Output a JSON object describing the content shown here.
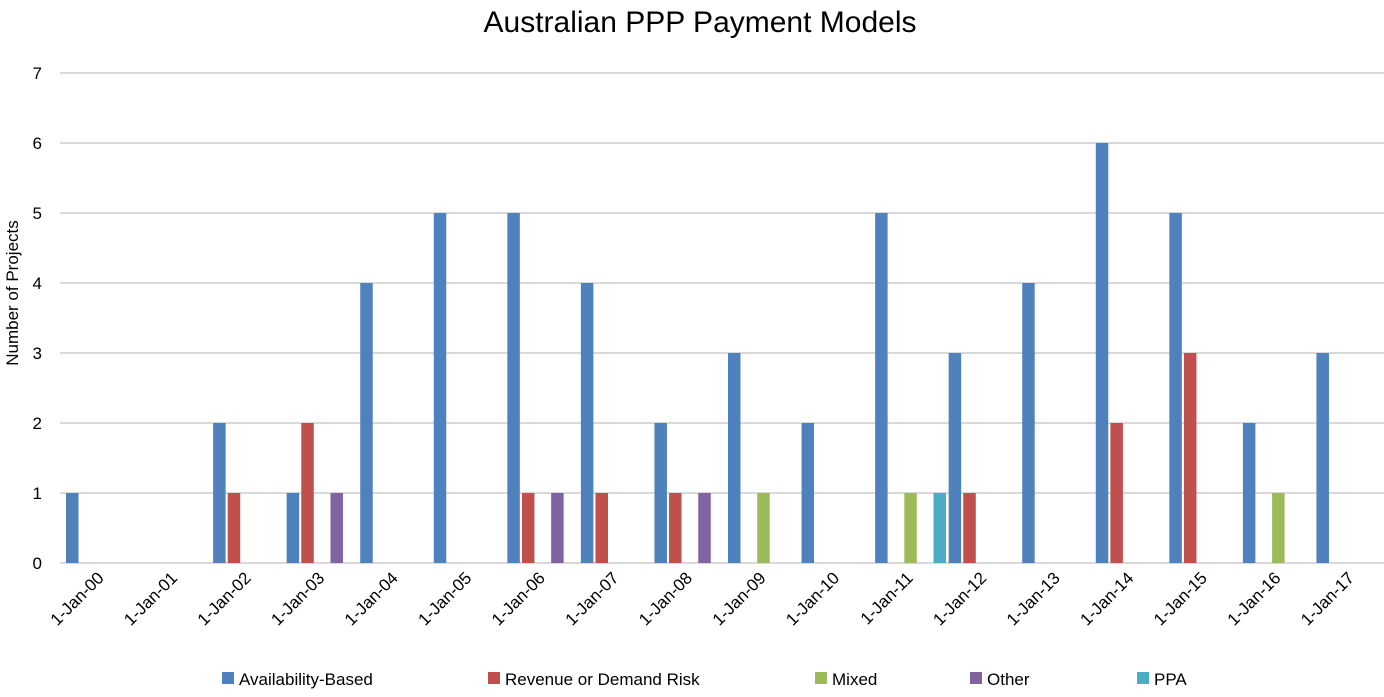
{
  "chart_data": {
    "type": "bar",
    "title": "Australian PPP Payment Models",
    "xlabel": "",
    "ylabel": "Number of Projects",
    "ylim": [
      0,
      7
    ],
    "yticks": [
      0,
      1,
      2,
      3,
      4,
      5,
      6,
      7
    ],
    "grid": true,
    "legend_position": "bottom",
    "categories": [
      "1-Jan-00",
      "1-Jan-01",
      "1-Jan-02",
      "1-Jan-03",
      "1-Jan-04",
      "1-Jan-05",
      "1-Jan-06",
      "1-Jan-07",
      "1-Jan-08",
      "1-Jan-09",
      "1-Jan-10",
      "1-Jan-11",
      "1-Jan-12",
      "1-Jan-13",
      "1-Jan-14",
      "1-Jan-15",
      "1-Jan-16",
      "1-Jan-17"
    ],
    "series": [
      {
        "name": "Availability-Based",
        "color": "#4f81bd",
        "values": [
          1,
          0,
          2,
          1,
          4,
          5,
          5,
          4,
          2,
          3,
          2,
          5,
          3,
          4,
          6,
          5,
          2,
          3
        ]
      },
      {
        "name": "Revenue or Demand Risk",
        "color": "#c0504d",
        "values": [
          0,
          0,
          1,
          2,
          0,
          0,
          1,
          1,
          1,
          0,
          0,
          0,
          1,
          0,
          2,
          3,
          0,
          0
        ]
      },
      {
        "name": "Mixed",
        "color": "#9bbb59",
        "values": [
          0,
          0,
          0,
          0,
          0,
          0,
          0,
          0,
          0,
          1,
          0,
          1,
          0,
          0,
          0,
          0,
          1,
          0
        ]
      },
      {
        "name": "Other",
        "color": "#8064a2",
        "values": [
          0,
          0,
          0,
          1,
          0,
          0,
          1,
          0,
          1,
          0,
          0,
          0,
          0,
          0,
          0,
          0,
          0,
          0
        ]
      },
      {
        "name": "PPA",
        "color": "#4bacc6",
        "values": [
          0,
          0,
          0,
          0,
          0,
          0,
          0,
          0,
          0,
          0,
          0,
          1,
          0,
          0,
          0,
          0,
          0,
          0
        ]
      }
    ]
  }
}
